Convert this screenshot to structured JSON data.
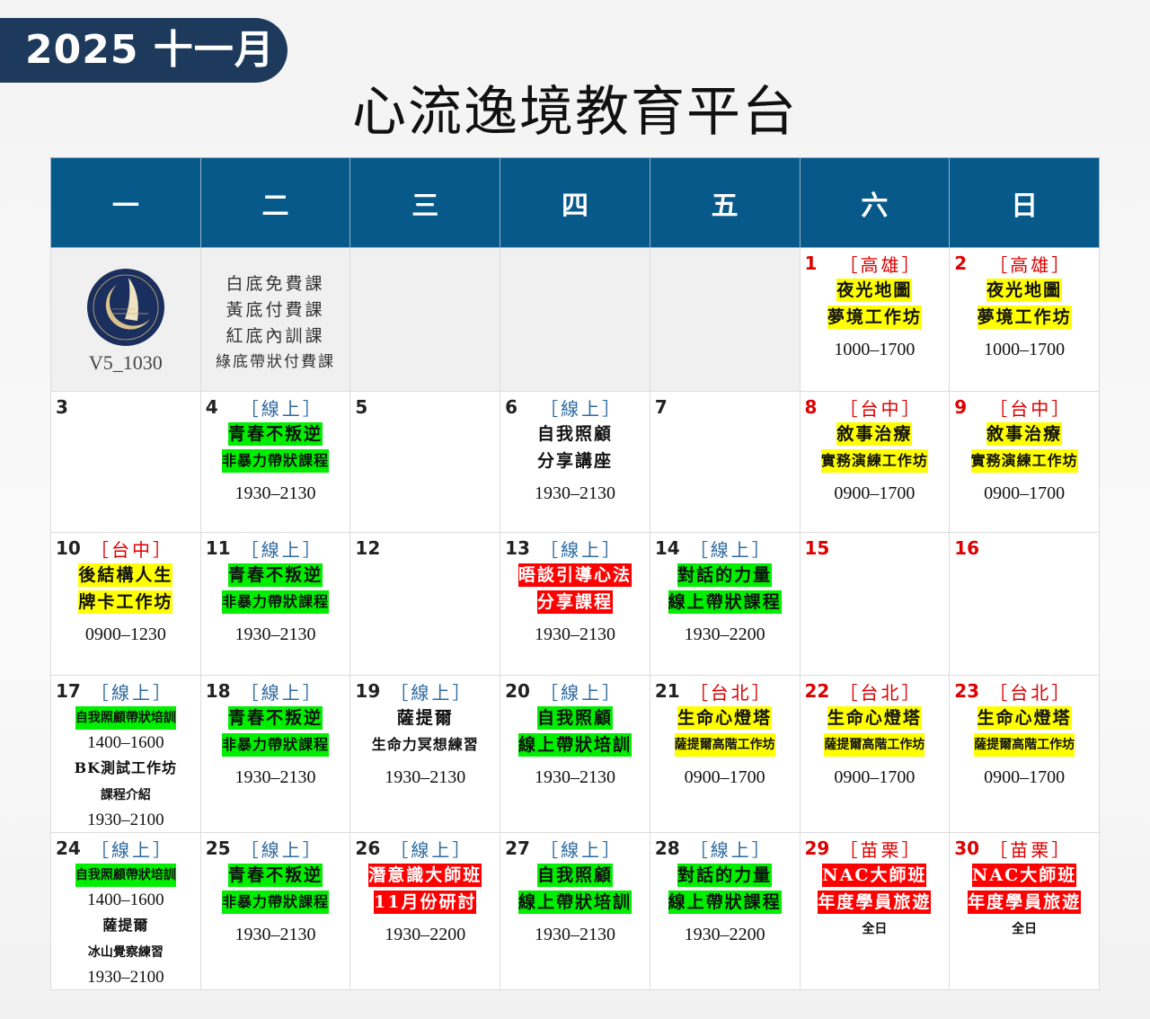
{
  "header": {
    "badge": "2025  十一月",
    "title": "心流逸境教育平台"
  },
  "colors": {
    "header_bg": "#07598a",
    "badge_bg": "#1d3a5c",
    "yellow": "#ffff00",
    "green": "#00ee00",
    "red": "#ff0000"
  },
  "weekdays": [
    "一",
    "二",
    "三",
    "四",
    "五",
    "六",
    "日"
  ],
  "logo": {
    "text": "CaroFlow BMS Education Center",
    "version": "V5_1030"
  },
  "legend": [
    "白底免費課",
    "黃底付費課",
    "紅底內訓課",
    "綠底帶狀付費課"
  ],
  "weeks": [
    [
      {
        "special": "logo"
      },
      {
        "special": "legend"
      },
      {
        "gray": true
      },
      {
        "gray": true
      },
      {
        "gray": true
      },
      {
        "day": "1",
        "red": true,
        "tag": "［高雄］",
        "tagRed": true,
        "lines": [
          {
            "t": "夜光地圖",
            "c": "y"
          },
          {
            "t": "夢境工作坊",
            "c": "y"
          },
          {
            "t": "1000–1700",
            "c": "t"
          }
        ]
      },
      {
        "day": "2",
        "red": true,
        "tag": "［高雄］",
        "tagRed": true,
        "lines": [
          {
            "t": "夜光地圖",
            "c": "y"
          },
          {
            "t": "夢境工作坊",
            "c": "y"
          },
          {
            "t": "1000–1700",
            "c": "t"
          }
        ]
      }
    ],
    [
      {
        "day": "3"
      },
      {
        "day": "4",
        "tag": "［線上］",
        "lines": [
          {
            "t": "青春不叛逆",
            "c": "g"
          },
          {
            "t": "非暴力帶狀課程",
            "c": "g sm"
          },
          {
            "t": "1930–2130",
            "c": "t"
          }
        ]
      },
      {
        "day": "5"
      },
      {
        "day": "6",
        "tag": "［線上］",
        "lines": [
          {
            "t": "自我照顧",
            "c": "n"
          },
          {
            "t": "分享講座",
            "c": "n"
          },
          {
            "t": "1930–2130",
            "c": "t"
          }
        ]
      },
      {
        "day": "7"
      },
      {
        "day": "8",
        "red": true,
        "tag": "［台中］",
        "tagRed": true,
        "lines": [
          {
            "t": "敘事治療",
            "c": "y"
          },
          {
            "t": "實務演練工作坊",
            "c": "y sm"
          },
          {
            "t": "0900–1700",
            "c": "t"
          }
        ]
      },
      {
        "day": "9",
        "red": true,
        "tag": "［台中］",
        "tagRed": true,
        "lines": [
          {
            "t": "敘事治療",
            "c": "y"
          },
          {
            "t": "實務演練工作坊",
            "c": "y sm"
          },
          {
            "t": "0900–1700",
            "c": "t"
          }
        ]
      }
    ],
    [
      {
        "day": "10",
        "tag": "［台中］",
        "tagRed": true,
        "lines": [
          {
            "t": "後結構人生",
            "c": "y"
          },
          {
            "t": "牌卡工作坊",
            "c": "y"
          },
          {
            "t": "0900–1230",
            "c": "t"
          }
        ]
      },
      {
        "day": "11",
        "tag": "［線上］",
        "lines": [
          {
            "t": "青春不叛逆",
            "c": "g"
          },
          {
            "t": "非暴力帶狀課程",
            "c": "g sm"
          },
          {
            "t": "1930–2130",
            "c": "t"
          }
        ]
      },
      {
        "day": "12"
      },
      {
        "day": "13",
        "tag": "［線上］",
        "lines": [
          {
            "t": "晤談引導心法",
            "c": "r"
          },
          {
            "t": "分享課程",
            "c": "r"
          },
          {
            "t": "1930–2130",
            "c": "t"
          }
        ]
      },
      {
        "day": "14",
        "tag": "［線上］",
        "lines": [
          {
            "t": "對話的力量",
            "c": "g"
          },
          {
            "t": "線上帶狀課程",
            "c": "g"
          },
          {
            "t": "1930–2200",
            "c": "t"
          }
        ]
      },
      {
        "day": "15",
        "red": true
      },
      {
        "day": "16",
        "red": true
      }
    ],
    [
      {
        "day": "17",
        "tag": "［線上］",
        "lines": [
          {
            "t": "自我照顧帶狀培訓",
            "c": "g xs"
          },
          {
            "t": "1400–1600",
            "c": "t2"
          },
          {
            "t": "BK測試工作坊",
            "c": "n sm"
          },
          {
            "t": "課程介紹",
            "c": "n xs"
          },
          {
            "t": "1930–2100",
            "c": "t2"
          }
        ]
      },
      {
        "day": "18",
        "tag": "［線上］",
        "lines": [
          {
            "t": "青春不叛逆",
            "c": "g"
          },
          {
            "t": "非暴力帶狀課程",
            "c": "g sm"
          },
          {
            "t": "1930–2130",
            "c": "t"
          }
        ]
      },
      {
        "day": "19",
        "tag": "［線上］",
        "lines": [
          {
            "t": "薩提爾",
            "c": "n"
          },
          {
            "t": "生命力冥想練習",
            "c": "n sm"
          },
          {
            "t": "1930–2130",
            "c": "t"
          }
        ]
      },
      {
        "day": "20",
        "tag": "［線上］",
        "lines": [
          {
            "t": "自我照顧",
            "c": "g"
          },
          {
            "t": "線上帶狀培訓",
            "c": "g"
          },
          {
            "t": "1930–2130",
            "c": "t"
          }
        ]
      },
      {
        "day": "21",
        "tag": "［台北］",
        "tagRed": true,
        "lines": [
          {
            "t": "生命心燈塔",
            "c": "y"
          },
          {
            "t": "薩提爾高階工作坊",
            "c": "y xs"
          },
          {
            "t": "0900–1700",
            "c": "t"
          }
        ]
      },
      {
        "day": "22",
        "red": true,
        "tag": "［台北］",
        "tagRed": true,
        "lines": [
          {
            "t": "生命心燈塔",
            "c": "y"
          },
          {
            "t": "薩提爾高階工作坊",
            "c": "y xs"
          },
          {
            "t": "0900–1700",
            "c": "t"
          }
        ]
      },
      {
        "day": "23",
        "red": true,
        "tag": "［台北］",
        "tagRed": true,
        "lines": [
          {
            "t": "生命心燈塔",
            "c": "y"
          },
          {
            "t": "薩提爾高階工作坊",
            "c": "y xs"
          },
          {
            "t": "0900–1700",
            "c": "t"
          }
        ]
      }
    ],
    [
      {
        "day": "24",
        "tag": "［線上］",
        "lines": [
          {
            "t": "自我照顧帶狀培訓",
            "c": "g xs"
          },
          {
            "t": "1400–1600",
            "c": "t2"
          },
          {
            "t": "薩提爾",
            "c": "n sm"
          },
          {
            "t": "冰山覺察練習",
            "c": "n xs"
          },
          {
            "t": "1930–2100",
            "c": "t2"
          }
        ]
      },
      {
        "day": "25",
        "tag": "［線上］",
        "lines": [
          {
            "t": "青春不叛逆",
            "c": "g"
          },
          {
            "t": "非暴力帶狀課程",
            "c": "g sm"
          },
          {
            "t": "1930–2130",
            "c": "t"
          }
        ]
      },
      {
        "day": "26",
        "tag": "［線上］",
        "lines": [
          {
            "t": "潛意識大師班",
            "c": "r"
          },
          {
            "t": "11月份研討",
            "c": "r"
          },
          {
            "t": "1930–2200",
            "c": "t"
          }
        ]
      },
      {
        "day": "27",
        "tag": "［線上］",
        "lines": [
          {
            "t": "自我照顧",
            "c": "g"
          },
          {
            "t": "線上帶狀培訓",
            "c": "g"
          },
          {
            "t": "1930–2130",
            "c": "t"
          }
        ]
      },
      {
        "day": "28",
        "tag": "［線上］",
        "lines": [
          {
            "t": "對話的力量",
            "c": "g"
          },
          {
            "t": "線上帶狀課程",
            "c": "g"
          },
          {
            "t": "1930–2200",
            "c": "t"
          }
        ]
      },
      {
        "day": "29",
        "red": true,
        "tag": "［苗栗］",
        "tagRed": true,
        "lines": [
          {
            "t": "NAC大師班",
            "c": "r"
          },
          {
            "t": "年度學員旅遊",
            "c": "r"
          },
          {
            "t": "全日",
            "c": "n xs"
          }
        ]
      },
      {
        "day": "30",
        "red": true,
        "tag": "［苗栗］",
        "tagRed": true,
        "lines": [
          {
            "t": "NAC大師班",
            "c": "r"
          },
          {
            "t": "年度學員旅遊",
            "c": "r"
          },
          {
            "t": "全日",
            "c": "n xs"
          }
        ]
      }
    ]
  ]
}
